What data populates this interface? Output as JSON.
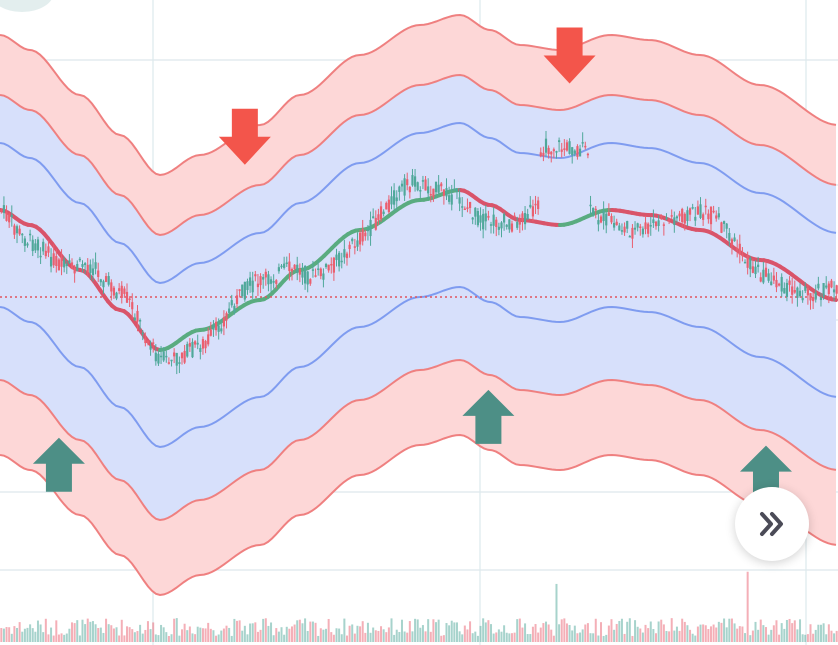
{
  "chart_data": {
    "type": "candlestick",
    "overlays": [
      "center-line",
      "inner-band",
      "outer-band",
      "envelope-band"
    ],
    "reference_line": {
      "style": "dotted",
      "color": "#e0545f"
    },
    "markers": [
      {
        "type": "buy",
        "candle_index": 22
      },
      {
        "type": "sell",
        "candle_index": 93
      },
      {
        "type": "buy",
        "candle_index": 186
      },
      {
        "type": "sell",
        "candle_index": 217
      },
      {
        "type": "buy",
        "candle_index": 292
      }
    ],
    "grid": true,
    "volume_panel": true,
    "colors": {
      "up": "#4fa89a",
      "down": "#ea5f6f",
      "center_up": "#5aac80",
      "center_down": "#d9546a",
      "inner_band_line": "#7f9cf0",
      "band_fill": "#d7e0fb",
      "outer_fill": "#fdd7d7",
      "outer_line": "#ef8080",
      "buy_marker": "#4d8f86",
      "sell_marker": "#f3554b",
      "grid": "#dde8ec"
    }
  },
  "controls": {
    "scroll_to_realtime_icon": "double-chevron-right-icon"
  }
}
